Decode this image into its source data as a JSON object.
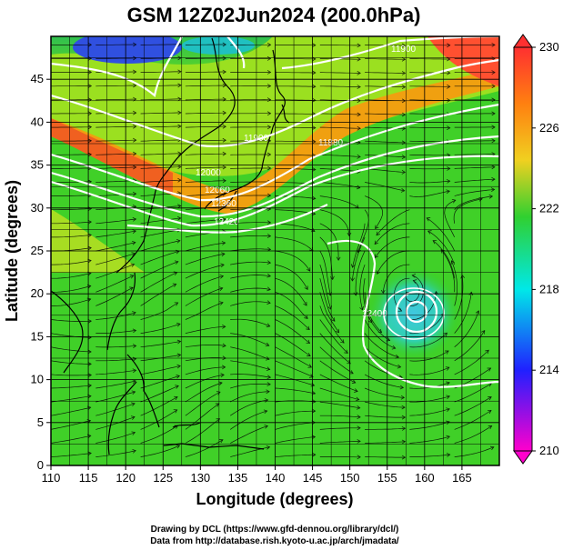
{
  "title": "GSM 12Z02Jun2024 (200.0hPa)",
  "xlabel": "Longitude (degrees)",
  "ylabel": "Latitude  (degrees)",
  "credits": [
    "Drawing by DCL (https://www.gfd-dennou.org/library/dcl/)",
    "Data from http://database.rish.kyoto-u.ac.jp/arch/jmadata/"
  ],
  "map": {
    "lon_range": [
      110,
      170
    ],
    "lat_range": [
      0,
      50
    ],
    "x_ticks": [
      "110",
      "115",
      "120",
      "125",
      "130",
      "135",
      "140",
      "145",
      "150",
      "155",
      "160",
      "165"
    ],
    "y_ticks": [
      "0",
      "5",
      "10",
      "15",
      "20",
      "25",
      "30",
      "35",
      "40",
      "45"
    ],
    "grid": true,
    "field": "temperature-like shaded field with streamlines and white height contours",
    "colorbar": {
      "min": 210,
      "max": 230,
      "ticks": [
        "210",
        "214",
        "218",
        "222",
        "226",
        "230"
      ],
      "colors": [
        "#ff00cc",
        "#2020ff",
        "#00e8e8",
        "#30d030",
        "#f0d020",
        "#ff8010",
        "#ff3030"
      ]
    },
    "contour_labels": [
      "11900",
      "11900",
      "11880",
      "12000",
      "12060",
      "12360",
      "12420",
      "12400"
    ],
    "contour_color": "#ffffff",
    "streamline_color": "#000000"
  }
}
